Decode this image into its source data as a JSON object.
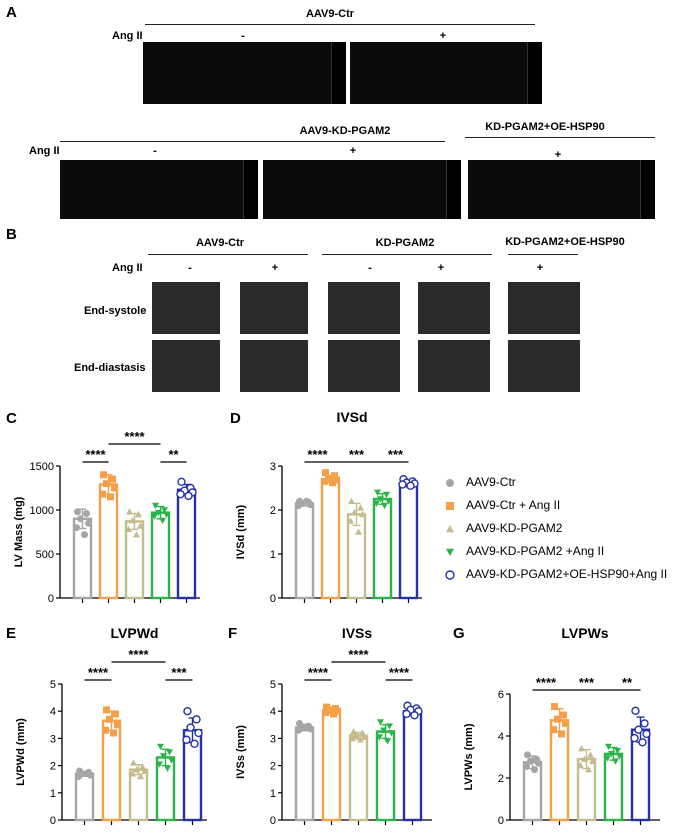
{
  "panels": {
    "A": "A",
    "B": "B",
    "C": "C",
    "D": "D",
    "E": "E",
    "F": "F",
    "G": "G"
  },
  "panelA": {
    "row1": {
      "group": "AAV9-Ctr",
      "ang_label": "Ang II",
      "minus": "-",
      "plus": "+"
    },
    "row2": {
      "group1": "AAV9-KD-PGAM2",
      "group2": "KD-PGAM2+OE-HSP90",
      "ang_label": "Ang II",
      "minus": "-",
      "plus1": "+",
      "plus2": "+"
    }
  },
  "panelB": {
    "groups": [
      "AAV9-Ctr",
      "KD-PGAM2",
      "KD-PGAM2+OE-HSP90"
    ],
    "ang_label": "Ang II",
    "signs": [
      "-",
      "+",
      "-",
      "+",
      "+"
    ],
    "rows": [
      "End-systole",
      "End-diastasis"
    ]
  },
  "colors": {
    "ctr": "#a6a6a6",
    "ctr_ang": "#f4a04b",
    "kd": "#c4bb8f",
    "kd_ang": "#29b54a",
    "hsp": "#2431a8"
  },
  "legend": {
    "items": [
      {
        "label": "AAV9-Ctr",
        "marker": "circle-filled"
      },
      {
        "label": "AAV9-Ctr + Ang II",
        "marker": "square-filled"
      },
      {
        "label": "AAV9-KD-PGAM2",
        "marker": "triangle-up"
      },
      {
        "label": "AAV9-KD-PGAM2 +Ang II",
        "marker": "triangle-down"
      },
      {
        "label": "AAV9-KD-PGAM2+OE-HSP90+Ang II",
        "marker": "circle-open"
      }
    ]
  },
  "chart_data": [
    {
      "id": "C",
      "type": "bar",
      "title": "",
      "ylabel": "LV Mass (mg)",
      "ylim": [
        0,
        1500
      ],
      "yticks": [
        0,
        500,
        1000,
        1500
      ],
      "values": [
        900,
        1290,
        870,
        970,
        1230
      ],
      "errors": [
        110,
        110,
        90,
        70,
        60
      ],
      "points": [
        [
          980,
          960,
          900,
          850,
          800,
          720
        ],
        [
          1400,
          1350,
          1300,
          1250,
          1180,
          1150
        ],
        [
          980,
          950,
          880,
          820,
          780,
          720
        ],
        [
          1050,
          1000,
          970,
          950,
          930,
          880
        ],
        [
          1320,
          1250,
          1220,
          1200,
          1180,
          1160
        ]
      ],
      "significance": [
        {
          "from": 0,
          "to": 1,
          "text": "****",
          "level": 1
        },
        {
          "from": 1,
          "to": 3,
          "text": "****",
          "level": 2
        },
        {
          "from": 3,
          "to": 4,
          "text": "**",
          "level": 1
        }
      ]
    },
    {
      "id": "D",
      "type": "bar",
      "title": "IVSd",
      "ylabel": "IVSd (mm)",
      "ylim": [
        0,
        3
      ],
      "yticks": [
        0,
        1,
        2,
        3
      ],
      "values": [
        2.15,
        2.7,
        1.9,
        2.25,
        2.6
      ],
      "errors": [
        0.06,
        0.08,
        0.25,
        0.12,
        0.07
      ],
      "points": [
        [
          2.2,
          2.18,
          2.15,
          2.12,
          2.1,
          2.2
        ],
        [
          2.85,
          2.78,
          2.72,
          2.68,
          2.65,
          2.62
        ],
        [
          2.2,
          2.05,
          1.95,
          1.9,
          1.75,
          1.5
        ],
        [
          2.4,
          2.35,
          2.25,
          2.2,
          2.15,
          2.1
        ],
        [
          2.7,
          2.65,
          2.62,
          2.6,
          2.58,
          2.55
        ]
      ],
      "significance": [
        {
          "from": 0,
          "to": 1,
          "text": "****",
          "level": 1
        },
        {
          "from": 1,
          "to": 3,
          "text": "***",
          "level": 1
        },
        {
          "from": 3,
          "to": 4,
          "text": "***",
          "level": 1
        }
      ]
    },
    {
      "id": "E",
      "type": "bar",
      "title": "LVPWd",
      "ylabel": "LVPWd (mm)",
      "ylim": [
        0,
        5
      ],
      "yticks": [
        0,
        1,
        2,
        3,
        4,
        5
      ],
      "values": [
        1.7,
        3.65,
        1.85,
        2.3,
        3.3
      ],
      "errors": [
        0.08,
        0.35,
        0.18,
        0.3,
        0.45
      ],
      "points": [
        [
          1.8,
          1.75,
          1.7,
          1.65,
          1.6,
          1.7
        ],
        [
          4.05,
          3.9,
          3.7,
          3.5,
          3.3,
          3.2
        ],
        [
          2.1,
          1.95,
          1.85,
          1.8,
          1.7,
          1.6
        ],
        [
          2.7,
          2.5,
          2.35,
          2.2,
          2.05,
          1.9
        ],
        [
          4.0,
          3.7,
          3.4,
          3.2,
          2.95,
          2.8
        ]
      ],
      "significance": [
        {
          "from": 0,
          "to": 1,
          "text": "****",
          "level": 1
        },
        {
          "from": 1,
          "to": 3,
          "text": "****",
          "level": 2
        },
        {
          "from": 3,
          "to": 4,
          "text": "***",
          "level": 1
        }
      ]
    },
    {
      "id": "F",
      "type": "bar",
      "title": "IVSs",
      "ylabel": "IVSs (mm)",
      "ylim": [
        0,
        5
      ],
      "yticks": [
        0,
        1,
        2,
        3,
        4,
        5
      ],
      "values": [
        3.4,
        4.0,
        3.1,
        3.25,
        4.0
      ],
      "errors": [
        0.12,
        0.1,
        0.12,
        0.25,
        0.12
      ],
      "points": [
        [
          3.55,
          3.45,
          3.4,
          3.35,
          3.3,
          3.4
        ],
        [
          4.15,
          4.1,
          4.05,
          4.0,
          3.95,
          3.9
        ],
        [
          3.25,
          3.2,
          3.1,
          3.05,
          3.0,
          2.95
        ],
        [
          3.6,
          3.45,
          3.3,
          3.2,
          3.05,
          2.9
        ],
        [
          4.2,
          4.1,
          4.05,
          4.0,
          3.9,
          3.85
        ]
      ],
      "significance": [
        {
          "from": 0,
          "to": 1,
          "text": "****",
          "level": 1
        },
        {
          "from": 1,
          "to": 3,
          "text": "****",
          "level": 2
        },
        {
          "from": 3,
          "to": 4,
          "text": "****",
          "level": 1
        }
      ]
    },
    {
      "id": "G",
      "type": "bar",
      "title": "LVPWs",
      "ylabel": "LVPWs (mm)",
      "ylim": [
        0,
        6
      ],
      "yticks": [
        0,
        2,
        4,
        6
      ],
      "values": [
        2.75,
        4.75,
        2.9,
        3.15,
        4.3
      ],
      "errors": [
        0.3,
        0.55,
        0.45,
        0.3,
        0.6
      ],
      "points": [
        [
          3.1,
          2.9,
          2.8,
          2.7,
          2.55,
          2.4
        ],
        [
          5.4,
          5.0,
          4.8,
          4.6,
          4.3,
          4.1
        ],
        [
          3.4,
          3.1,
          2.9,
          2.8,
          2.6,
          2.4
        ],
        [
          3.5,
          3.3,
          3.15,
          3.05,
          2.95,
          2.8
        ],
        [
          5.2,
          4.6,
          4.3,
          4.1,
          3.9,
          3.7
        ]
      ],
      "significance": [
        {
          "from": 0,
          "to": 1,
          "text": "****",
          "level": 1
        },
        {
          "from": 1,
          "to": 3,
          "text": "***",
          "level": 1
        },
        {
          "from": 3,
          "to": 4,
          "text": "**",
          "level": 1
        }
      ]
    }
  ]
}
